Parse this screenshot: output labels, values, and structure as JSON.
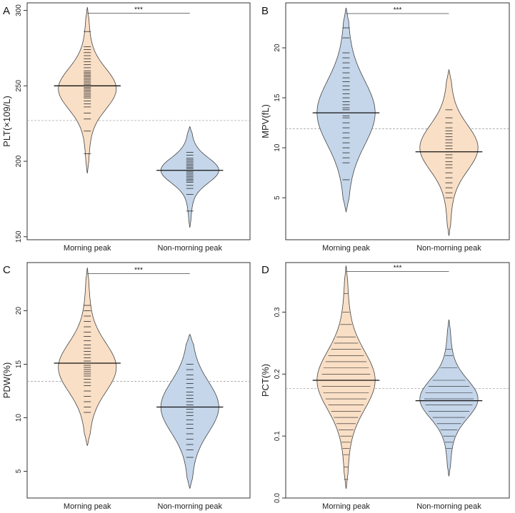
{
  "colors": {
    "orange": "#f9dfc6",
    "blue": "#c5d6ea"
  },
  "chart_data": [
    {
      "type": "violin",
      "panel": "A",
      "ylabel": "PLT(×109/L)",
      "ylim": [
        148,
        305
      ],
      "yticks": [
        150,
        200,
        250,
        300
      ],
      "ref_mean": 227,
      "significance": "***",
      "groups": [
        {
          "name": "Morning peak",
          "color": "orange",
          "mean": 250,
          "min": 192,
          "max": 302,
          "mode": 248,
          "spread": 13,
          "ticks": [
            205,
            220,
            228,
            232,
            236,
            238,
            240,
            242,
            243,
            244,
            245,
            246,
            247,
            248,
            249,
            250,
            251,
            252,
            253,
            254,
            255,
            256,
            257,
            258,
            259,
            260,
            262,
            264,
            266,
            268,
            270,
            272,
            274,
            276,
            286
          ]
        },
        {
          "name": "Non-morning peak",
          "color": "blue",
          "mean": 194,
          "min": 156,
          "max": 223,
          "mode": 194,
          "spread": 8,
          "ticks": [
            167,
            178,
            182,
            184,
            186,
            187,
            188,
            189,
            190,
            191,
            192,
            193,
            194,
            195,
            196,
            197,
            198,
            199,
            200,
            201,
            202,
            204,
            206
          ]
        }
      ]
    },
    {
      "type": "violin",
      "panel": "B",
      "ylabel": "MPV(fL)",
      "ylim": [
        0.8,
        24.5
      ],
      "yticks": [
        5,
        10,
        15,
        20
      ],
      "ref_mean": 11.9,
      "significance": "***",
      "groups": [
        {
          "name": "Morning peak",
          "color": "blue",
          "mean": 13.5,
          "min": 3.6,
          "max": 24,
          "mode": 13.5,
          "spread": 3.1,
          "ticks": [
            6.8,
            8.5,
            9,
            9.5,
            10,
            10.5,
            11,
            11.5,
            12,
            12.5,
            13,
            13.2,
            13.5,
            13.8,
            14,
            14.3,
            14.6,
            15,
            15.4,
            15.8,
            16.2,
            16.6,
            17,
            17.5,
            18,
            18.5,
            19,
            19.5,
            21,
            22
          ]
        },
        {
          "name": "Non-morning peak",
          "color": "orange",
          "mean": 9.6,
          "min": 1.2,
          "max": 17.8,
          "mode": 10,
          "spread": 2.2,
          "ticks": [
            5,
            5.5,
            6,
            6.5,
            7,
            7.5,
            8,
            8.3,
            8.6,
            9,
            9.3,
            9.6,
            9.9,
            10.2,
            10.5,
            10.8,
            11.1,
            11.4,
            11.7,
            12,
            12.5,
            13,
            13.8
          ]
        }
      ]
    },
    {
      "type": "violin",
      "panel": "C",
      "ylabel": "PDW(%)",
      "ylim": [
        2.5,
        24.5
      ],
      "yticks": [
        5,
        10,
        15,
        20
      ],
      "ref_mean": 13.4,
      "significance": "***",
      "groups": [
        {
          "name": "Morning peak",
          "color": "orange",
          "mean": 15.1,
          "min": 7.4,
          "max": 24,
          "mode": 14.7,
          "spread": 2.2,
          "ticks": [
            10.5,
            11,
            11.5,
            12,
            12.5,
            13,
            13.3,
            13.6,
            13.9,
            14.1,
            14.3,
            14.5,
            14.7,
            14.9,
            15.1,
            15.3,
            15.6,
            15.9,
            16.2,
            16.5,
            16.8,
            17.2,
            17.6,
            18,
            18.5,
            19,
            19.5,
            20,
            20.5
          ]
        },
        {
          "name": "Non-morning peak",
          "color": "blue",
          "mean": 11,
          "min": 3.4,
          "max": 17.8,
          "mode": 11,
          "spread": 2.3,
          "ticks": [
            6.3,
            7,
            7.5,
            8,
            8.5,
            9,
            9.4,
            9.8,
            10.2,
            10.5,
            10.8,
            11,
            11.2,
            11.5,
            11.8,
            12.1,
            12.4,
            12.8,
            13.2,
            13.6,
            14,
            14.5,
            15
          ]
        }
      ]
    },
    {
      "type": "violin",
      "panel": "D",
      "ylabel": "PCT(%)",
      "ylim": [
        0,
        0.38
      ],
      "yticks": [
        0.0,
        0.1,
        0.2,
        0.3
      ],
      "ref_mean": 0.177,
      "significance": "***",
      "groups": [
        {
          "name": "Morning peak",
          "color": "orange",
          "mean": 0.19,
          "min": 0.015,
          "max": 0.375,
          "mode": 0.19,
          "spread": 0.045,
          "ticks": [
            0.03,
            0.05,
            0.07,
            0.08,
            0.09,
            0.1,
            0.11,
            0.12,
            0.13,
            0.14,
            0.15,
            0.16,
            0.17,
            0.18,
            0.19,
            0.2,
            0.21,
            0.22,
            0.23,
            0.24,
            0.25,
            0.26,
            0.28,
            0.3,
            0.33
          ]
        },
        {
          "name": "Non-morning peak",
          "color": "blue",
          "mean": 0.157,
          "min": 0.035,
          "max": 0.288,
          "mode": 0.16,
          "spread": 0.03,
          "ticks": [
            0.08,
            0.09,
            0.1,
            0.11,
            0.12,
            0.13,
            0.14,
            0.15,
            0.16,
            0.17,
            0.18,
            0.19,
            0.21,
            0.23,
            0.24
          ]
        }
      ]
    }
  ]
}
